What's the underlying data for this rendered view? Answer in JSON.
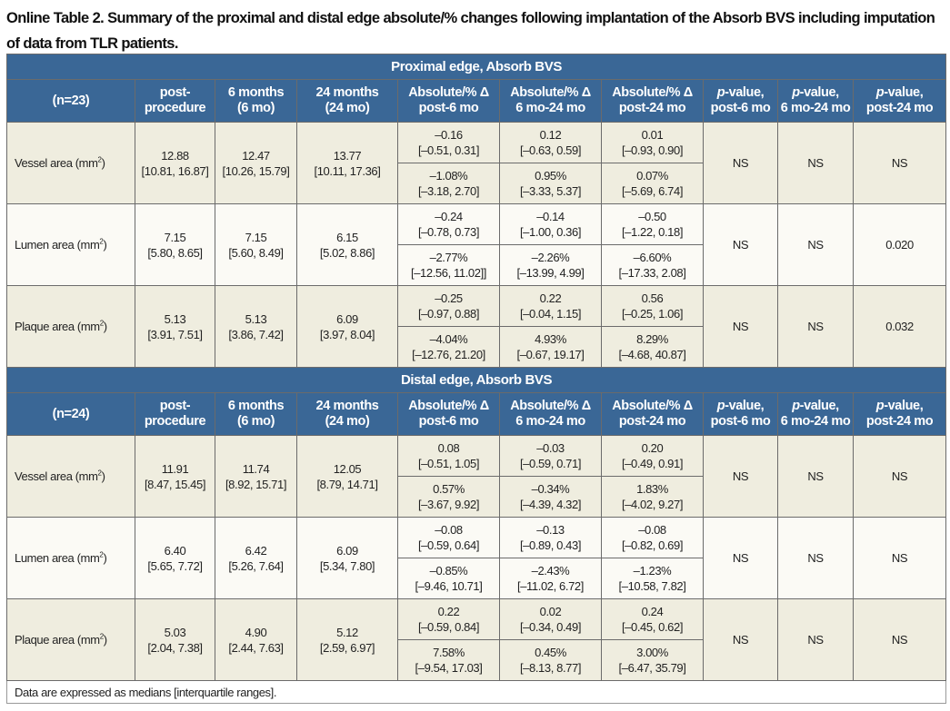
{
  "title": "Online Table 2. Summary of the proximal and distal edge absolute/% changes following implantation of the Absorb BVS including imputation of data from TLR patients.",
  "column_headers": [
    [
      "post-",
      "procedure"
    ],
    [
      "6 months",
      "(6 mo)"
    ],
    [
      "24 months",
      "(24 mo)"
    ],
    [
      "Absolute/% Δ",
      "post-6 mo"
    ],
    [
      "Absolute/% Δ",
      "6 mo-24 mo"
    ],
    [
      "Absolute/% Δ",
      "post-24 mo"
    ],
    [
      "p-value,",
      "post-6 mo"
    ],
    [
      "p-value,",
      "6 mo-24 mo"
    ],
    [
      "p-value,",
      "post-24 mo"
    ]
  ],
  "sections": [
    {
      "title": "Proximal edge, Absorb BVS",
      "n": "(n=23)",
      "rows": [
        {
          "label": "Vessel area (mm",
          "sup": "2",
          "post": [
            "12.88",
            "[10.81, 16.87]"
          ],
          "m6": [
            "12.47",
            "[10.26, 15.79]"
          ],
          "m24": [
            "13.77",
            "[10.11, 17.36]"
          ],
          "abs": [
            [
              "–0.16",
              "[–0.51, 0.31]"
            ],
            [
              "0.12",
              "[–0.63, 0.59]"
            ],
            [
              "0.01",
              "[–0.93, 0.90]"
            ]
          ],
          "pct": [
            [
              "–1.08%",
              "[–3.18, 2.70]"
            ],
            [
              "0.95%",
              "[–3.33, 5.37]"
            ],
            [
              "0.07%",
              "[–5.69, 6.74]"
            ]
          ],
          "p": [
            "NS",
            "NS",
            "NS"
          ]
        },
        {
          "label": "Lumen area (mm",
          "sup": "2",
          "post": [
            "7.15",
            "[5.80, 8.65]"
          ],
          "m6": [
            "7.15",
            "[5.60, 8.49]"
          ],
          "m24": [
            "6.15",
            "[5.02, 8.86]"
          ],
          "abs": [
            [
              "–0.24",
              "[–0.78, 0.73]"
            ],
            [
              "–0.14",
              "[–1.00, 0.36]"
            ],
            [
              "–0.50",
              "[–1.22, 0.18]"
            ]
          ],
          "pct": [
            [
              "–2.77%",
              "[–12.56, 11.02]]"
            ],
            [
              "–2.26%",
              "[–13.99, 4.99]"
            ],
            [
              "–6.60%",
              "[–17.33, 2.08]"
            ]
          ],
          "p": [
            "NS",
            "NS",
            "0.020"
          ]
        },
        {
          "label": "Plaque area (mm",
          "sup": "2",
          "post": [
            "5.13",
            "[3.91, 7.51]"
          ],
          "m6": [
            "5.13",
            "[3.86, 7.42]"
          ],
          "m24": [
            "6.09",
            "[3.97, 8.04]"
          ],
          "abs": [
            [
              "–0.25",
              "[–0.97, 0.88]"
            ],
            [
              "0.22",
              "[–0.04, 1.15]"
            ],
            [
              "0.56",
              "[–0.25, 1.06]"
            ]
          ],
          "pct": [
            [
              "–4.04%",
              "[–12.76, 21.20]"
            ],
            [
              "4.93%",
              "[–0.67, 19.17]"
            ],
            [
              "8.29%",
              "[–4.68, 40.87]"
            ]
          ],
          "p": [
            "NS",
            "NS",
            "0.032"
          ]
        }
      ]
    },
    {
      "title": "Distal edge, Absorb BVS",
      "n": "(n=24)",
      "rows": [
        {
          "label": "Vessel area (mm",
          "sup": "2",
          "post": [
            "11.91",
            "[8.47, 15.45]"
          ],
          "m6": [
            "11.74",
            "[8.92, 15.71]"
          ],
          "m24": [
            "12.05",
            "[8.79, 14.71]"
          ],
          "abs": [
            [
              "0.08",
              "[–0.51, 1.05]"
            ],
            [
              "–0.03",
              "[–0.59, 0.71]"
            ],
            [
              "0.20",
              "[–0.49, 0.91]"
            ]
          ],
          "pct": [
            [
              "0.57%",
              "[–3.67, 9.92]"
            ],
            [
              "–0.34%",
              "[–4.39, 4.32]"
            ],
            [
              "1.83%",
              "[–4.02, 9.27]"
            ]
          ],
          "p": [
            "NS",
            "NS",
            "NS"
          ]
        },
        {
          "label": "Lumen area (mm",
          "sup": "2",
          "post": [
            "6.40",
            "[5.65, 7.72]"
          ],
          "m6": [
            "6.42",
            "[5.26, 7.64]"
          ],
          "m24": [
            "6.09",
            "[5.34, 7.80]"
          ],
          "abs": [
            [
              "–0.08",
              "[–0.59, 0.64]"
            ],
            [
              "–0.13",
              "[–0.89, 0.43]"
            ],
            [
              "–0.08",
              "[–0.82, 0.69]"
            ]
          ],
          "pct": [
            [
              "–0.85%",
              "[–9.46, 10.71]"
            ],
            [
              "–2.43%",
              "[–11.02, 6.72]"
            ],
            [
              "–1.23%",
              "[–10.58, 7.82]"
            ]
          ],
          "p": [
            "NS",
            "NS",
            "NS"
          ]
        },
        {
          "label": "Plaque area (mm",
          "sup": "2",
          "post": [
            "5.03",
            "[2.04, 7.38]"
          ],
          "m6": [
            "4.90",
            "[2.44, 7.63]"
          ],
          "m24": [
            "5.12",
            "[2.59, 6.97]"
          ],
          "abs": [
            [
              "0.22",
              "[–0.59, 0.84]"
            ],
            [
              "0.02",
              "[–0.34, 0.49]"
            ],
            [
              "0.24",
              "[–0.45, 0.62]"
            ]
          ],
          "pct": [
            [
              "7.58%",
              "[–9.54, 17.03]"
            ],
            [
              "0.45%",
              "[–8.13, 8.77]"
            ],
            [
              "3.00%",
              "[–6.47, 35.79]"
            ]
          ],
          "p": [
            "NS",
            "NS",
            "NS"
          ]
        }
      ]
    }
  ],
  "footnote": "Data are expressed as medians [interquartile ranges]."
}
